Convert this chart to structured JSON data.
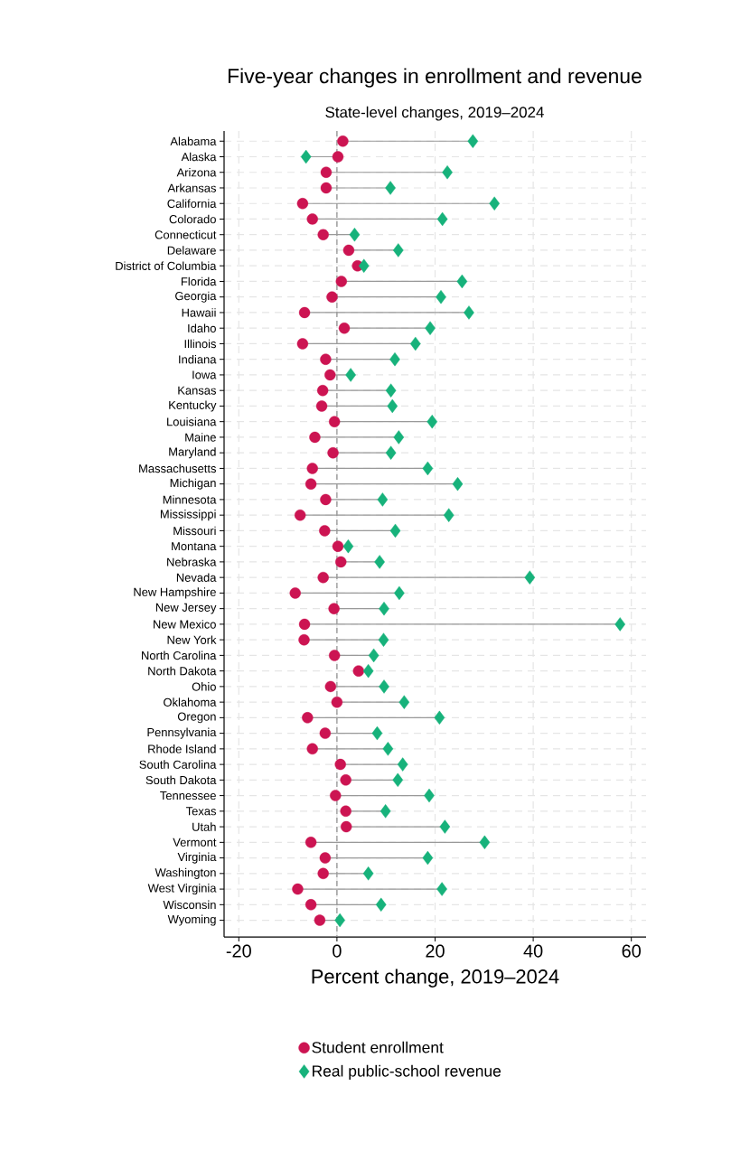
{
  "chart_data": {
    "type": "scatter",
    "orientation": "horizontal",
    "title": "Five-year changes in enrollment and revenue",
    "subtitle": "State-level changes, 2019–2024",
    "xlabel": "Percent change, 2019–2024",
    "categories": [
      "Alabama",
      "Alaska",
      "Arizona",
      "Arkansas",
      "California",
      "Colorado",
      "Connecticut",
      "Delaware",
      "District of Columbia",
      "Florida",
      "Georgia",
      "Hawaii",
      "Idaho",
      "Illinois",
      "Indiana",
      "Iowa",
      "Kansas",
      "Kentucky",
      "Louisiana",
      "Maine",
      "Maryland",
      "Massachusetts",
      "Michigan",
      "Minnesota",
      "Mississippi",
      "Missouri",
      "Montana",
      "Nebraska",
      "Nevada",
      "New Hampshire",
      "New Jersey",
      "New Mexico",
      "New York",
      "North Carolina",
      "North Dakota",
      "Ohio",
      "Oklahoma",
      "Oregon",
      "Pennsylvania",
      "Rhode Island",
      "South Carolina",
      "South Dakota",
      "Tennessee",
      "Texas",
      "Utah",
      "Vermont",
      "Virginia",
      "Washington",
      "West Virginia",
      "Wisconsin",
      "Wyoming"
    ],
    "series": [
      {
        "name": "Student enrollment",
        "color": "#cc1452",
        "marker": "circle",
        "values": [
          1.2,
          0.2,
          -2.2,
          -2.2,
          -7.0,
          -5.0,
          -2.8,
          2.4,
          4.2,
          0.9,
          -1.0,
          -6.6,
          1.5,
          -7.0,
          -2.3,
          -1.4,
          -2.9,
          -3.1,
          -0.5,
          -4.5,
          -0.8,
          -5.0,
          -5.3,
          -2.3,
          -7.5,
          -2.5,
          0.2,
          0.8,
          -2.8,
          -8.5,
          -0.6,
          -6.6,
          -6.7,
          -0.5,
          4.4,
          -1.3,
          0.0,
          -6.0,
          -2.4,
          -5.0,
          0.7,
          1.8,
          -0.3,
          1.8,
          1.9,
          -5.3,
          -2.4,
          -2.8,
          -8.0,
          -5.3,
          -3.5
        ]
      },
      {
        "name": "Real public-school revenue",
        "color": "#17b27b",
        "marker": "diamond",
        "values": [
          27.7,
          -6.3,
          22.5,
          10.9,
          32.1,
          21.5,
          3.6,
          12.5,
          5.5,
          25.5,
          21.2,
          26.9,
          19.0,
          16.0,
          11.8,
          2.8,
          11.0,
          11.3,
          19.4,
          12.6,
          11.0,
          18.5,
          24.6,
          9.3,
          22.8,
          11.9,
          2.3,
          8.7,
          39.3,
          12.7,
          9.6,
          57.7,
          9.5,
          7.5,
          6.4,
          9.6,
          13.7,
          20.9,
          8.2,
          10.4,
          13.4,
          12.4,
          18.8,
          9.9,
          22.0,
          30.1,
          18.5,
          6.4,
          21.4,
          9.0,
          0.6
        ]
      }
    ],
    "xlim": [
      -23,
      63
    ],
    "xticks": [
      -20,
      0,
      20,
      40,
      60
    ],
    "ref_lines": [
      {
        "axis": "x",
        "value": 0,
        "color": "#8c8c8c",
        "line_style": "dashed"
      }
    ],
    "grid": true,
    "legend": "bottom"
  }
}
